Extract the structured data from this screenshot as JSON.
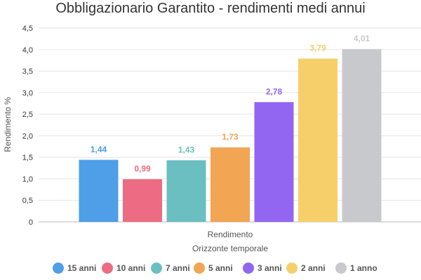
{
  "chart_data": {
    "type": "bar",
    "title": "Obbligazionario Garantito - rendimenti medi annui",
    "xlabel": "Orizzonte temporale",
    "ylabel": "Rendimento %",
    "categories": [
      "Rendimento"
    ],
    "ylim": [
      0,
      4.5
    ],
    "yticks": [
      "0",
      "0,5",
      "1,0",
      "1,5",
      "2,0",
      "2,5",
      "3,0",
      "3,5",
      "4,0",
      "4,5"
    ],
    "grid": true,
    "legend_position": "bottom",
    "series": [
      {
        "name": "15 anni",
        "value": 1.44,
        "label": "1,44",
        "color": "#4f9ee8"
      },
      {
        "name": "10 anni",
        "value": 0.99,
        "label": "0,99",
        "color": "#ee6b84"
      },
      {
        "name": "7 anni",
        "value": 1.43,
        "label": "1,43",
        "color": "#6bbfc0"
      },
      {
        "name": "5 anni",
        "value": 1.73,
        "label": "1,73",
        "color": "#f2a553"
      },
      {
        "name": "3 anni",
        "value": 2.78,
        "label": "2,78",
        "color": "#9366f2"
      },
      {
        "name": "2 anni",
        "value": 3.79,
        "label": "3,79",
        "color": "#f6cf6b"
      },
      {
        "name": "1 anno",
        "value": 4.01,
        "label": "4,01",
        "color": "#c8c9cd"
      }
    ]
  }
}
